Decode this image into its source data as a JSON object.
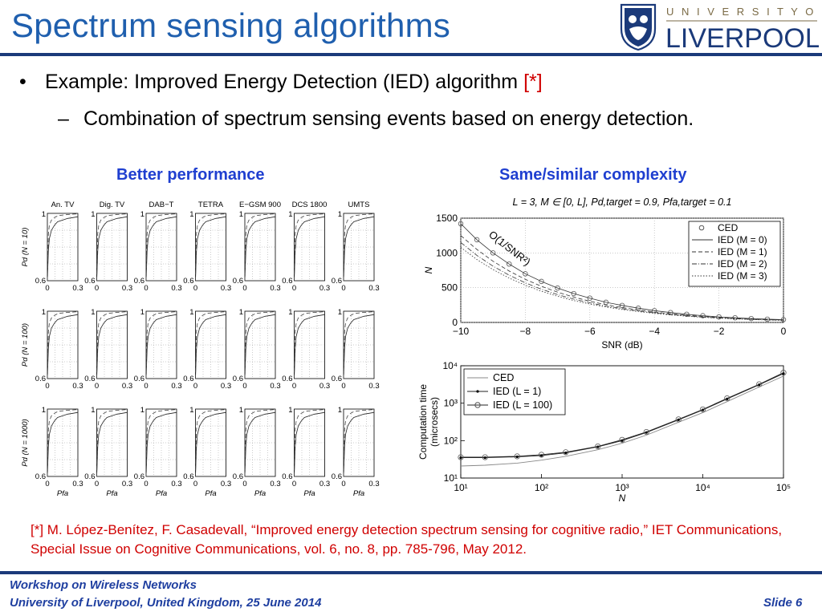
{
  "slide": {
    "title": "Spectrum sensing algorithms",
    "bullet": "Example: Improved Energy Detection (IED) algorithm ",
    "bullet_ref": "[*]",
    "sub_bullet": "Combination of spectrum sensing events based on energy detection.",
    "left_heading": "Better performance",
    "right_heading": "Same/similar complexity",
    "citation": "[*] M. López-Benítez, F. Casadevall, “Improved energy detection spectrum sensing for cognitive radio,” IET Communications, Special Issue on Cognitive Communications, vol. 6, no. 8, pp. 785-796, May 2012.",
    "footer_line1": "Workshop on Wireless Networks",
    "footer_line2": "University of Liverpool, United Kingdom, 25 June 2014",
    "slide_number": "Slide 6"
  },
  "logo": {
    "top_text": "U N I V E R S I T Y   O F",
    "main_text": "LIVERPOOL",
    "color": "#1b3a7a"
  },
  "colors": {
    "title": "#1f5fae",
    "heading": "#1f3fd0",
    "citation": "#d00000",
    "rule": "#1b3a7a"
  },
  "chart_data": [
    {
      "type": "line",
      "layout": "grid",
      "columns": [
        "An. TV",
        "Dig. TV",
        "DAB−T",
        "TETRA",
        "E−GSM 900",
        "DCS 1800",
        "UMTS"
      ],
      "row_labels": [
        "Pd (N = 10)",
        "Pd (N = 100)",
        "Pd (N = 1000)"
      ],
      "xlabel": "Pfa",
      "x_ticks": [
        "0",
        "0.3"
      ],
      "y_ticks": [
        "0.6",
        "1"
      ],
      "xlim": [
        0,
        0.3
      ],
      "ylim": [
        0.6,
        1
      ],
      "x": [
        0,
        0.01,
        0.02,
        0.04,
        0.07,
        0.1,
        0.15,
        0.2,
        0.25,
        0.3
      ],
      "series": [
        {
          "style": "solid",
          "values": [
            0.6,
            0.78,
            0.85,
            0.9,
            0.93,
            0.95,
            0.96,
            0.97,
            0.975,
            0.98
          ]
        },
        {
          "style": "dashed",
          "values": [
            0.6,
            0.88,
            0.93,
            0.96,
            0.975,
            0.985,
            0.99,
            0.993,
            0.995,
            0.997
          ]
        }
      ]
    },
    {
      "type": "line",
      "title": "L = 3,  M ∈ [0, L],  Pd,target = 0.9,  Pfa,target = 0.1",
      "xlabel": "SNR (dB)",
      "ylabel": "N",
      "xlim": [
        -10,
        0
      ],
      "ylim": [
        0,
        1500
      ],
      "x_ticks": [
        -10,
        -8,
        -6,
        -4,
        -2,
        0
      ],
      "y_ticks": [
        0,
        500,
        1000,
        1500
      ],
      "annotation": "O(1/SNR²)",
      "grid": true,
      "legend": "top-right",
      "x": [
        -10,
        -9.5,
        -9,
        -8.5,
        -8,
        -7.5,
        -7,
        -6.5,
        -6,
        -5.5,
        -5,
        -4.5,
        -4,
        -3.5,
        -3,
        -2.5,
        -2,
        -1.5,
        -1,
        -0.5,
        0
      ],
      "series": [
        {
          "name": "CED",
          "style": "circle",
          "values": [
            1420,
            1190,
            1000,
            840,
            700,
            590,
            495,
            415,
            350,
            290,
            245,
            205,
            170,
            142,
            118,
            97,
            80,
            67,
            56,
            47,
            40
          ]
        },
        {
          "name": "IED (M = 0)",
          "style": "solid",
          "values": [
            1420,
            1190,
            1000,
            840,
            700,
            590,
            495,
            415,
            350,
            290,
            245,
            205,
            170,
            142,
            118,
            97,
            80,
            67,
            56,
            47,
            40
          ]
        },
        {
          "name": "IED (M = 1)",
          "style": "dashed",
          "values": [
            1250,
            1050,
            880,
            740,
            620,
            520,
            435,
            365,
            305,
            255,
            215,
            180,
            150,
            125,
            104,
            86,
            71,
            59,
            49,
            41,
            35
          ]
        },
        {
          "name": "IED (M = 2)",
          "style": "dashdot",
          "values": [
            1150,
            965,
            810,
            680,
            570,
            478,
            400,
            336,
            281,
            235,
            198,
            166,
            138,
            115,
            96,
            79,
            65,
            54,
            45,
            38,
            32
          ]
        },
        {
          "name": "IED (M = 3)",
          "style": "dotted",
          "values": [
            1080,
            905,
            760,
            638,
            535,
            449,
            376,
            315,
            264,
            221,
            186,
            156,
            130,
            108,
            90,
            74,
            61,
            51,
            42,
            35,
            30
          ]
        }
      ]
    },
    {
      "type": "line",
      "xlabel": "N",
      "ylabel": "Computation time (microsecs)",
      "xscale": "log",
      "yscale": "log",
      "xlim": [
        10,
        100000
      ],
      "ylim": [
        10,
        10000
      ],
      "x_ticks": [
        "10¹",
        "10²",
        "10³",
        "10⁴",
        "10⁵"
      ],
      "y_ticks": [
        "10¹",
        "10²",
        "10³",
        "10⁴"
      ],
      "legend": "top-left",
      "x": [
        10,
        20,
        50,
        100,
        200,
        500,
        1000,
        2000,
        5000,
        10000,
        20000,
        50000,
        100000
      ],
      "series": [
        {
          "name": "CED",
          "style": "solid",
          "values": [
            21,
            22,
            25,
            30,
            38,
            57,
            85,
            140,
            310,
            560,
            1100,
            2700,
            5300
          ]
        },
        {
          "name": "IED (L = 1)",
          "style": "dot",
          "values": [
            35,
            35,
            37,
            40,
            47,
            68,
            100,
            165,
            360,
            660,
            1300,
            3100,
            6200
          ]
        },
        {
          "name": "IED (L = 100)",
          "style": "circle",
          "values": [
            36,
            36,
            38,
            42,
            49,
            70,
            105,
            170,
            370,
            680,
            1350,
            3200,
            6500
          ]
        }
      ]
    }
  ]
}
